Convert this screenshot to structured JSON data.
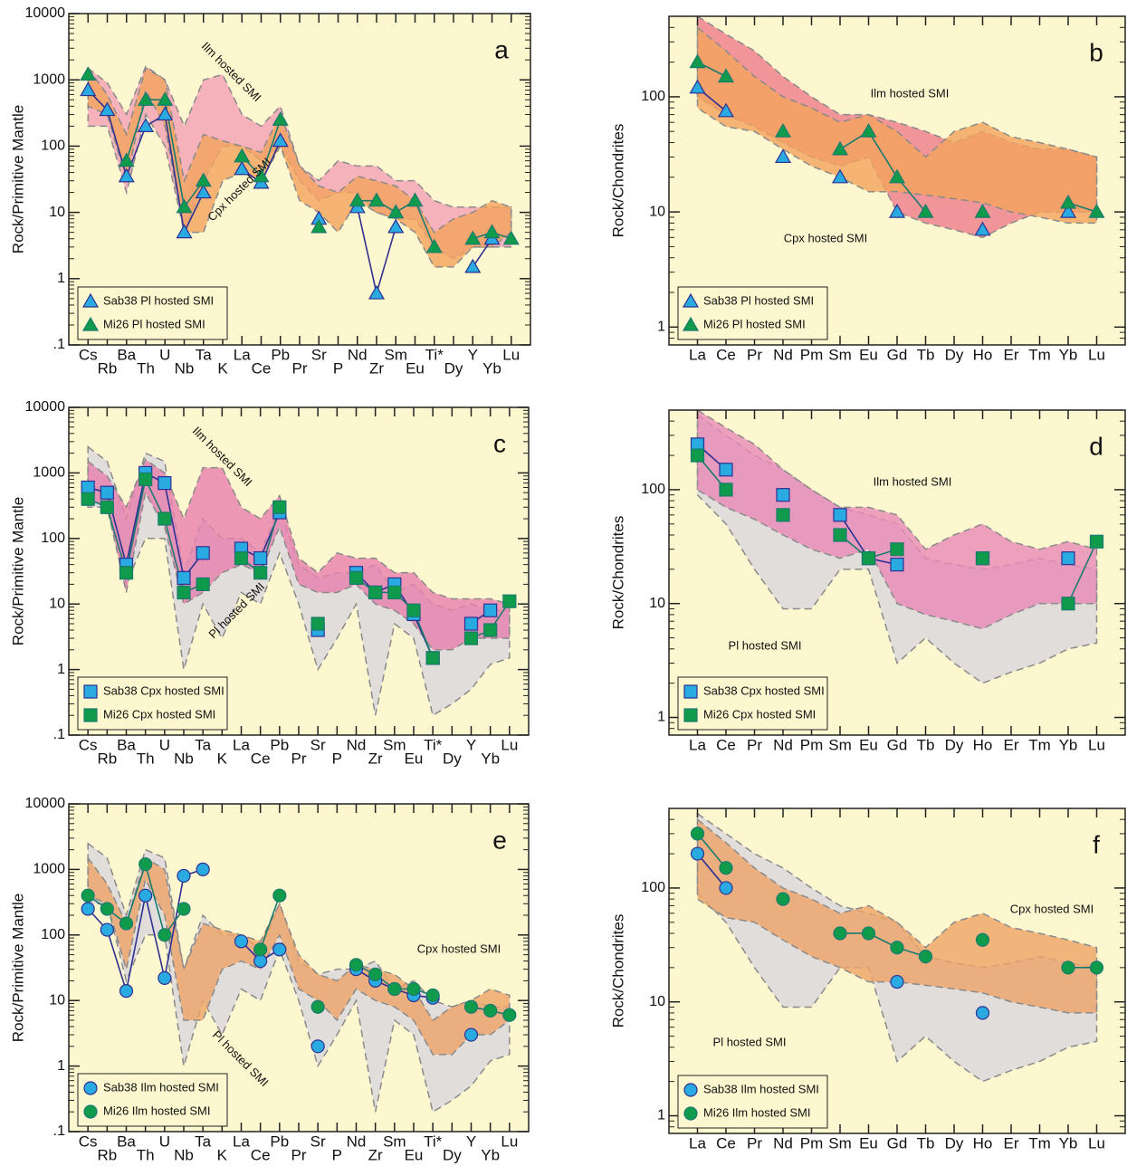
{
  "chart_data": [
    {
      "type": "line",
      "panel": "a",
      "ylabel": "Rock/Primitive Mantle",
      "log_y": true,
      "legend": "lower left",
      "categories": [
        "Cs",
        "Rb",
        "Ba",
        "Th",
        "U",
        "Nb",
        "Ta",
        "K",
        "La",
        "Ce",
        "Pb",
        "Pr",
        "Sr",
        "P",
        "Nd",
        "Zr",
        "Sm",
        "Eu",
        "Ti*",
        "Dy",
        "Y",
        "Yb",
        "Lu"
      ],
      "ylim": [
        0.1,
        10000
      ],
      "yticks": [
        {
          "value": 0.1,
          "label": ".1"
        },
        1,
        10,
        100,
        1000,
        10000
      ],
      "fields": [
        {
          "name": "Ilm hosted SMI",
          "color": "#f3a0b6",
          "upper": [
            1500,
            900,
            300,
            1600,
            1000,
            200,
            1000,
            1200,
            300,
            200,
            400,
            50,
            30,
            60,
            50,
            50,
            30,
            30,
            15,
            12,
            12,
            12,
            12
          ],
          "lower": [
            200,
            200,
            20,
            300,
            100,
            5,
            30,
            100,
            100,
            60,
            100,
            30,
            15,
            20,
            20,
            10,
            8,
            8,
            3,
            2,
            3,
            3,
            3
          ]
        },
        {
          "name": "Cpx hosted SMI",
          "color": "#f2a35c",
          "upper": [
            1500,
            600,
            150,
            1500,
            1000,
            30,
            150,
            120,
            100,
            80,
            300,
            50,
            25,
            20,
            35,
            30,
            25,
            15,
            5,
            8,
            10,
            15,
            12
          ],
          "lower": [
            400,
            300,
            30,
            700,
            200,
            5,
            5,
            30,
            40,
            30,
            100,
            15,
            10,
            5,
            15,
            10,
            8,
            5,
            1.5,
            1.5,
            3,
            3,
            5
          ]
        }
      ],
      "series": [
        {
          "name": "Sab38 Pl hosted SMI",
          "marker": "triangle",
          "color": "#29abe2",
          "line_color": "#2e3192",
          "values": [
            700,
            350,
            35,
            200,
            300,
            5,
            20,
            null,
            45,
            28,
            120,
            null,
            8,
            null,
            12,
            0.6,
            6,
            null,
            null,
            null,
            1.5,
            4,
            null
          ]
        },
        {
          "name": "Mi26 Pl hosted SMI",
          "marker": "triangle",
          "color": "#0f9a4c",
          "line_color": "#1b7a6e",
          "values": [
            1200,
            null,
            60,
            500,
            500,
            12,
            30,
            null,
            70,
            35,
            250,
            null,
            6,
            null,
            15,
            15,
            10,
            15,
            3,
            null,
            4,
            5,
            4
          ]
        }
      ]
    },
    {
      "type": "line",
      "panel": "b",
      "ylabel": "Rock/Chondrites",
      "log_y": true,
      "legend": "lower left",
      "categories": [
        "La",
        "Ce",
        "Pr",
        "Nd",
        "Pm",
        "Sm",
        "Eu",
        "Gd",
        "Tb",
        "Dy",
        "Ho",
        "Er",
        "Tm",
        "Yb",
        "Lu"
      ],
      "ylim": [
        0.7,
        500
      ],
      "yticks": [
        1,
        10,
        100
      ],
      "fields": [
        {
          "name": "Ilm hosted SMI",
          "color": "#ef7c8c",
          "upper": [
            500,
            350,
            250,
            150,
            100,
            70,
            70,
            60,
            50,
            40,
            50,
            40,
            35,
            35,
            30
          ],
          "lower": [
            100,
            70,
            55,
            40,
            30,
            25,
            30,
            10,
            8,
            7,
            6,
            8,
            10,
            10,
            10
          ]
        },
        {
          "name": "Cpx hosted SMI",
          "color": "#f2a35c",
          "upper": [
            400,
            250,
            150,
            100,
            80,
            60,
            70,
            50,
            30,
            50,
            60,
            45,
            40,
            35,
            30
          ],
          "lower": [
            80,
            55,
            50,
            35,
            25,
            20,
            15,
            15,
            14,
            13,
            12,
            10,
            9,
            8,
            8
          ]
        }
      ],
      "series": [
        {
          "name": "Sab38 Pl hosted SMI",
          "marker": "triangle",
          "color": "#29abe2",
          "line_color": "#2e3192",
          "values": [
            120,
            75,
            null,
            30,
            null,
            20,
            null,
            10,
            null,
            null,
            7,
            null,
            null,
            10,
            null
          ]
        },
        {
          "name": "Mi26 Pl hosted SMI",
          "marker": "triangle",
          "color": "#0f9a4c",
          "line_color": "#1b7a6e",
          "values": [
            200,
            150,
            null,
            50,
            null,
            35,
            50,
            20,
            10,
            null,
            10,
            null,
            null,
            12,
            10
          ]
        }
      ]
    },
    {
      "type": "line",
      "panel": "c",
      "ylabel": "Rock/Primitive Mantle",
      "log_y": true,
      "legend": "lower left",
      "categories": [
        "Cs",
        "Rb",
        "Ba",
        "Th",
        "U",
        "Nb",
        "Ta",
        "K",
        "La",
        "Ce",
        "Pb",
        "Pr",
        "Sr",
        "P",
        "Nd",
        "Zr",
        "Sm",
        "Eu",
        "Ti*",
        "Dy",
        "Y",
        "Yb",
        "Lu"
      ],
      "ylim": [
        0.1,
        10000
      ],
      "yticks": [
        {
          "value": 0.1,
          "label": ".1"
        },
        1,
        10,
        100,
        1000,
        10000
      ],
      "fields": [
        {
          "name": "Pl hosted SMI",
          "color": "#d9d6dd",
          "upper": [
            2500,
            1500,
            200,
            2000,
            1500,
            30,
            200,
            100,
            100,
            60,
            300,
            40,
            25,
            30,
            30,
            40,
            15,
            20,
            10,
            8,
            10,
            8,
            8
          ],
          "lower": [
            300,
            300,
            20,
            100,
            100,
            1,
            10,
            3,
            15,
            10,
            60,
            10,
            1,
            3,
            10,
            0.2,
            5,
            3,
            0.2,
            0.3,
            0.5,
            1.2,
            1.5
          ]
        },
        {
          "name": "Ilm hosted SMI",
          "color": "#e77fae",
          "upper": [
            1500,
            900,
            300,
            1600,
            1000,
            200,
            1200,
            1200,
            300,
            200,
            450,
            50,
            30,
            60,
            50,
            50,
            30,
            30,
            15,
            12,
            12,
            12,
            10
          ],
          "lower": [
            400,
            300,
            15,
            500,
            150,
            10,
            15,
            30,
            40,
            30,
            150,
            20,
            15,
            15,
            20,
            10,
            8,
            5,
            2,
            2,
            3,
            3,
            3
          ]
        }
      ],
      "series": [
        {
          "name": "Sab38 Cpx hosted SMI",
          "marker": "square",
          "color": "#29abe2",
          "line_color": "#2e3192",
          "values": [
            600,
            500,
            40,
            1000,
            700,
            25,
            60,
            null,
            70,
            50,
            250,
            null,
            4,
            null,
            30,
            15,
            20,
            7,
            1.5,
            null,
            5,
            8,
            null
          ]
        },
        {
          "name": "Mi26 Cpx hosted SMI",
          "marker": "square",
          "color": "#0f9a4c",
          "line_color": "#1b7a6e",
          "values": [
            400,
            300,
            30,
            800,
            200,
            15,
            20,
            null,
            50,
            30,
            300,
            null,
            5,
            null,
            25,
            15,
            15,
            8,
            1.5,
            null,
            3,
            4,
            11
          ]
        }
      ]
    },
    {
      "type": "line",
      "panel": "d",
      "ylabel": "Rock/Chondrites",
      "log_y": true,
      "legend": "lower left",
      "categories": [
        "La",
        "Ce",
        "Pr",
        "Nd",
        "Pm",
        "Sm",
        "Eu",
        "Gd",
        "Tb",
        "Dy",
        "Ho",
        "Er",
        "Tm",
        "Yb",
        "Lu"
      ],
      "ylim": [
        0.7,
        500
      ],
      "yticks": [
        1,
        10,
        100
      ],
      "fields": [
        {
          "name": "Pl hosted SMI",
          "color": "#d9d6dd",
          "upper": [
            450,
            300,
            200,
            150,
            100,
            70,
            60,
            50,
            25,
            22,
            20,
            22,
            25,
            22,
            20
          ],
          "lower": [
            90,
            50,
            20,
            9,
            9,
            20,
            20,
            3,
            5,
            3,
            2,
            2.5,
            3,
            4,
            4.5
          ]
        },
        {
          "name": "Ilm hosted SMI",
          "color": "#e98ab6",
          "upper": [
            500,
            350,
            250,
            150,
            100,
            70,
            70,
            60,
            30,
            40,
            50,
            35,
            30,
            35,
            30
          ],
          "lower": [
            100,
            70,
            55,
            40,
            30,
            25,
            30,
            10,
            8,
            7,
            6,
            8,
            10,
            10,
            10
          ]
        }
      ],
      "series": [
        {
          "name": "Sab38 Cpx hosted SMI",
          "marker": "square",
          "color": "#29abe2",
          "line_color": "#2e3192",
          "values": [
            250,
            150,
            null,
            90,
            null,
            60,
            25,
            22,
            null,
            null,
            25,
            null,
            null,
            25,
            null
          ]
        },
        {
          "name": "Mi26 Cpx hosted SMI",
          "marker": "square",
          "color": "#0f9a4c",
          "line_color": "#1b7a6e",
          "values": [
            200,
            100,
            null,
            60,
            null,
            40,
            25,
            30,
            null,
            null,
            25,
            null,
            null,
            10,
            35
          ]
        }
      ]
    },
    {
      "type": "line",
      "panel": "e",
      "ylabel": "Rock/Primitive Mantle",
      "log_y": true,
      "legend": "lower left",
      "categories": [
        "Cs",
        "Rb",
        "Ba",
        "Th",
        "U",
        "Nb",
        "Ta",
        "K",
        "La",
        "Ce",
        "Pb",
        "Pr",
        "Sr",
        "P",
        "Nd",
        "Zr",
        "Sm",
        "Eu",
        "Ti*",
        "Dy",
        "Y",
        "Yb",
        "Lu"
      ],
      "ylim": [
        0.1,
        10000
      ],
      "yticks": [
        {
          "value": 0.1,
          "label": ".1"
        },
        1,
        10,
        100,
        1000,
        10000
      ],
      "fields": [
        {
          "name": "Pl hosted SMI",
          "color": "#d9d6dd",
          "upper": [
            2500,
            1500,
            200,
            2000,
            1500,
            30,
            200,
            100,
            100,
            60,
            300,
            40,
            25,
            30,
            30,
            40,
            15,
            20,
            10,
            8,
            10,
            8,
            8
          ],
          "lower": [
            300,
            300,
            20,
            100,
            100,
            1,
            10,
            3,
            15,
            10,
            60,
            10,
            1,
            3,
            10,
            0.2,
            5,
            3,
            0.2,
            0.3,
            0.5,
            1.2,
            1.5
          ]
        },
        {
          "name": "Cpx hosted SMI",
          "color": "#eea468",
          "upper": [
            1500,
            600,
            150,
            1500,
            1000,
            30,
            150,
            120,
            100,
            80,
            300,
            50,
            25,
            20,
            35,
            30,
            25,
            15,
            5,
            8,
            10,
            15,
            12
          ],
          "lower": [
            400,
            300,
            30,
            700,
            200,
            5,
            5,
            30,
            40,
            30,
            100,
            15,
            10,
            5,
            15,
            10,
            8,
            5,
            1.5,
            1.5,
            3,
            3,
            5
          ]
        }
      ],
      "series": [
        {
          "name": "Sab38 Ilm hosted SMI",
          "marker": "circle",
          "color": "#29abe2",
          "line_color": "#2e3192",
          "values": [
            250,
            120,
            14,
            400,
            22,
            800,
            1000,
            null,
            80,
            40,
            60,
            null,
            2,
            null,
            30,
            20,
            15,
            12,
            11,
            null,
            3,
            null,
            null
          ]
        },
        {
          "name": "Mi26 Ilm hosted SMI",
          "marker": "circle",
          "color": "#0f9a4c",
          "line_color": "#1b7a6e",
          "values": [
            400,
            250,
            150,
            1200,
            100,
            250,
            null,
            null,
            null,
            60,
            400,
            null,
            8,
            null,
            35,
            25,
            15,
            15,
            12,
            null,
            8,
            7,
            6
          ]
        }
      ]
    },
    {
      "type": "line",
      "panel": "f",
      "ylabel": "Rock/Chondrites",
      "log_y": true,
      "legend": "lower left",
      "categories": [
        "La",
        "Ce",
        "Pr",
        "Nd",
        "Pm",
        "Sm",
        "Eu",
        "Gd",
        "Tb",
        "Dy",
        "Ho",
        "Er",
        "Tm",
        "Yb",
        "Lu"
      ],
      "ylim": [
        0.7,
        500
      ],
      "yticks": [
        1,
        10,
        100
      ],
      "fields": [
        {
          "name": "Pl hosted SMI",
          "color": "#d9d6dd",
          "upper": [
            450,
            300,
            200,
            150,
            100,
            70,
            60,
            50,
            25,
            22,
            20,
            22,
            25,
            22,
            20
          ],
          "lower": [
            90,
            50,
            20,
            9,
            9,
            20,
            20,
            3,
            5,
            3,
            2,
            2.5,
            3,
            4,
            4.5
          ]
        },
        {
          "name": "Cpx hosted SMI",
          "color": "#eea468",
          "upper": [
            400,
            250,
            150,
            100,
            80,
            60,
            70,
            50,
            30,
            50,
            60,
            45,
            40,
            35,
            30
          ],
          "lower": [
            80,
            55,
            50,
            35,
            25,
            20,
            15,
            15,
            14,
            13,
            12,
            10,
            9,
            8,
            8
          ]
        }
      ],
      "series": [
        {
          "name": "Sab38 Ilm hosted SMI",
          "marker": "circle",
          "color": "#29abe2",
          "line_color": "#2e3192",
          "values": [
            200,
            100,
            null,
            null,
            null,
            null,
            null,
            15,
            null,
            null,
            8,
            null,
            null,
            null,
            null
          ]
        },
        {
          "name": "Mi26 Ilm hosted SMI",
          "marker": "circle",
          "color": "#0f9a4c",
          "line_color": "#1b7a6e",
          "values": [
            300,
            150,
            null,
            80,
            null,
            40,
            40,
            30,
            25,
            null,
            35,
            null,
            null,
            20,
            20
          ]
        }
      ]
    }
  ]
}
